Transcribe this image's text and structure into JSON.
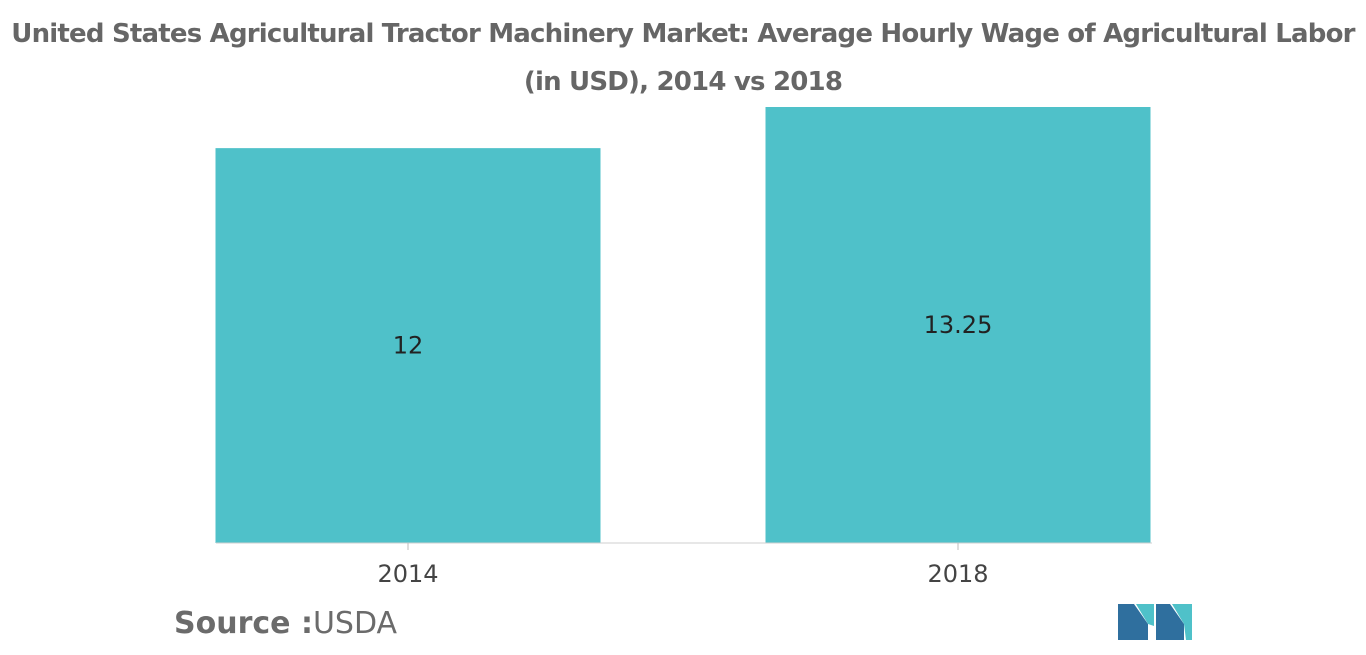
{
  "chart_data": {
    "type": "bar",
    "title": "United States Agricultural Tractor Machinery Market: Average Hourly Wage of Agricultural Labor (in USD), 2014 vs 2018",
    "categories": [
      "2014",
      "2018"
    ],
    "values": [
      12,
      13.25
    ],
    "data_labels": [
      "12",
      "13.25"
    ],
    "ylim": [
      0,
      13.25
    ],
    "grid": false,
    "legend": "none",
    "bar_color": "#4fc1c9"
  },
  "source": {
    "label": "Source :",
    "value": "USDA"
  },
  "colors": {
    "title": "#666666",
    "bar": "#4fc1c9",
    "logo_dark": "#2f6f9e",
    "logo_light": "#4fc1c9"
  }
}
